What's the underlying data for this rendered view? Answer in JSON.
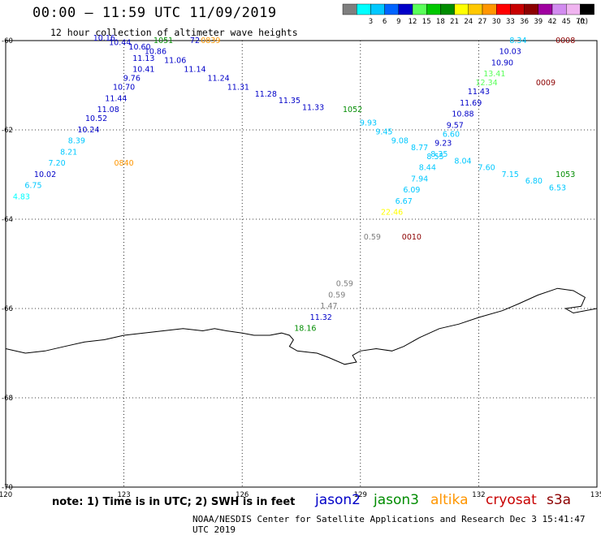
{
  "header": {
    "title": "00:00 – 11:59 UTC 11/09/2019",
    "subtitle": "12 hour collection of altimeter wave heights"
  },
  "colorbar": {
    "unit_label": "(ft)",
    "bins": [
      {
        "label": "",
        "color": "#7f7f7f"
      },
      {
        "label": "3",
        "color": "#00ffff"
      },
      {
        "label": "6",
        "color": "#00c8ff"
      },
      {
        "label": "9",
        "color": "#0064ff"
      },
      {
        "label": "12",
        "color": "#0000c8"
      },
      {
        "label": "15",
        "color": "#5aff5a"
      },
      {
        "label": "18",
        "color": "#00c800"
      },
      {
        "label": "21",
        "color": "#008c00"
      },
      {
        "label": "24",
        "color": "#ffff00"
      },
      {
        "label": "27",
        "color": "#ffc800"
      },
      {
        "label": "30",
        "color": "#ff9600"
      },
      {
        "label": "33",
        "color": "#ff0000"
      },
      {
        "label": "36",
        "color": "#c80000"
      },
      {
        "label": "39",
        "color": "#8c0000"
      },
      {
        "label": "42",
        "color": "#a000a0"
      },
      {
        "label": "45",
        "color": "#d28cf0"
      },
      {
        "label": "70",
        "color": "#f0b4f0"
      },
      {
        "label": "",
        "color": "#000000"
      }
    ]
  },
  "footer": {
    "note": "note:  1) Time is in UTC;  2) SWH is in feet",
    "credit": "NOAA/NESDIS Center for Satellite Applications and Research    Dec  3 15:41:47 UTC 2019",
    "satellites": [
      {
        "name": "jason2",
        "color": "#0000c8"
      },
      {
        "name": "jason3",
        "color": "#008c00"
      },
      {
        "name": "altika",
        "color": "#ff9600"
      },
      {
        "name": "cryosat",
        "color": "#c80000"
      },
      {
        "name": "s3a",
        "color": "#8c0000"
      }
    ]
  },
  "chart_data": {
    "type": "scatter",
    "title": "00:00 – 11:59 UTC 11/09/2019",
    "subtitle": "12 hour collection of altimeter wave heights",
    "xlim": [
      120,
      135
    ],
    "ylim": [
      -70,
      -60
    ],
    "x_ticks": [
      "120",
      "123",
      "126",
      "129",
      "132",
      "135"
    ],
    "y_ticks": [
      "-60",
      "-62",
      "-64",
      "-66",
      "-68",
      "-70"
    ],
    "grid": true,
    "annotations": [
      {
        "text": "10.16",
        "x": 122.5,
        "y": -60.0,
        "color": "#0000c8"
      },
      {
        "text": "10.44",
        "x": 122.9,
        "y": -60.1,
        "color": "#0000c8"
      },
      {
        "text": "10.60",
        "x": 123.4,
        "y": -60.2,
        "color": "#0000c8"
      },
      {
        "text": "10.86",
        "x": 123.8,
        "y": -60.3,
        "color": "#0000c8"
      },
      {
        "text": "11.13",
        "x": 123.5,
        "y": -60.45,
        "color": "#0000c8"
      },
      {
        "text": "11.06",
        "x": 124.3,
        "y": -60.5,
        "color": "#0000c8"
      },
      {
        "text": "11.14",
        "x": 124.8,
        "y": -60.7,
        "color": "#0000c8"
      },
      {
        "text": "11.24",
        "x": 125.4,
        "y": -60.9,
        "color": "#0000c8"
      },
      {
        "text": "11.31",
        "x": 125.9,
        "y": -61.1,
        "color": "#0000c8"
      },
      {
        "text": "11.28",
        "x": 126.6,
        "y": -61.25,
        "color": "#0000c8"
      },
      {
        "text": "11.35",
        "x": 127.2,
        "y": -61.4,
        "color": "#0000c8"
      },
      {
        "text": "11.33",
        "x": 127.8,
        "y": -61.55,
        "color": "#0000c8"
      },
      {
        "text": "1051",
        "x": 124.0,
        "y": -60.05,
        "color": "#008c00"
      },
      {
        "text": "72",
        "x": 124.8,
        "y": -60.05,
        "color": "#0000c8"
      },
      {
        "text": "0839",
        "x": 125.2,
        "y": -60.05,
        "color": "#ff9600"
      },
      {
        "text": "10.41",
        "x": 123.5,
        "y": -60.7,
        "color": "#0000c8"
      },
      {
        "text": "9.76",
        "x": 123.2,
        "y": -60.9,
        "color": "#0000c8"
      },
      {
        "text": "10.70",
        "x": 123.0,
        "y": -61.1,
        "color": "#0000c8"
      },
      {
        "text": "11.44",
        "x": 122.8,
        "y": -61.35,
        "color": "#0000c8"
      },
      {
        "text": "11.08",
        "x": 122.6,
        "y": -61.6,
        "color": "#0000c8"
      },
      {
        "text": "10.52",
        "x": 122.3,
        "y": -61.8,
        "color": "#0000c8"
      },
      {
        "text": "10.24",
        "x": 122.1,
        "y": -62.05,
        "color": "#0000c8"
      },
      {
        "text": "8.39",
        "x": 121.8,
        "y": -62.3,
        "color": "#00c8ff"
      },
      {
        "text": "8.21",
        "x": 121.6,
        "y": -62.55,
        "color": "#00c8ff"
      },
      {
        "text": "7.20",
        "x": 121.3,
        "y": -62.8,
        "color": "#00c8ff"
      },
      {
        "text": "0840",
        "x": 123.0,
        "y": -62.8,
        "color": "#ff9600"
      },
      {
        "text": "10.02",
        "x": 121.0,
        "y": -63.05,
        "color": "#0000c8"
      },
      {
        "text": "6.75",
        "x": 120.7,
        "y": -63.3,
        "color": "#00c8ff"
      },
      {
        "text": "4.83",
        "x": 120.4,
        "y": -63.55,
        "color": "#00ffff"
      },
      {
        "text": "1052",
        "x": 128.8,
        "y": -61.6,
        "color": "#008c00"
      },
      {
        "text": "9.93",
        "x": 129.2,
        "y": -61.9,
        "color": "#00c8ff"
      },
      {
        "text": "9.45",
        "x": 129.6,
        "y": -62.1,
        "color": "#00c8ff"
      },
      {
        "text": "9.08",
        "x": 130.0,
        "y": -62.3,
        "color": "#00c8ff"
      },
      {
        "text": "8.77",
        "x": 130.5,
        "y": -62.45,
        "color": "#00c8ff"
      },
      {
        "text": "8.35",
        "x": 131.0,
        "y": -62.6,
        "color": "#00c8ff"
      },
      {
        "text": "8.04",
        "x": 131.6,
        "y": -62.75,
        "color": "#00c8ff"
      },
      {
        "text": "7.60",
        "x": 132.2,
        "y": -62.9,
        "color": "#00c8ff"
      },
      {
        "text": "7.15",
        "x": 132.8,
        "y": -63.05,
        "color": "#00c8ff"
      },
      {
        "text": "6.80",
        "x": 133.4,
        "y": -63.2,
        "color": "#00c8ff"
      },
      {
        "text": "6.53",
        "x": 134.0,
        "y": -63.35,
        "color": "#00c8ff"
      },
      {
        "text": "1053",
        "x": 134.2,
        "y": -63.05,
        "color": "#008c00"
      },
      {
        "text": "8.34",
        "x": 133.0,
        "y": -60.05,
        "color": "#00c8ff"
      },
      {
        "text": "0008",
        "x": 134.2,
        "y": -60.05,
        "color": "#8c0000"
      },
      {
        "text": "10.03",
        "x": 132.8,
        "y": -60.3,
        "color": "#0000c8"
      },
      {
        "text": "10.90",
        "x": 132.6,
        "y": -60.55,
        "color": "#0000c8"
      },
      {
        "text": "13.41",
        "x": 132.4,
        "y": -60.8,
        "color": "#5aff5a"
      },
      {
        "text": "12.34",
        "x": 132.2,
        "y": -61.0,
        "color": "#5aff5a"
      },
      {
        "text": "0009",
        "x": 133.7,
        "y": -61.0,
        "color": "#8c0000"
      },
      {
        "text": "11.43",
        "x": 132.0,
        "y": -61.2,
        "color": "#0000c8"
      },
      {
        "text": "11.69",
        "x": 131.8,
        "y": -61.45,
        "color": "#0000c8"
      },
      {
        "text": "10.88",
        "x": 131.6,
        "y": -61.7,
        "color": "#0000c8"
      },
      {
        "text": "9.57",
        "x": 131.4,
        "y": -61.95,
        "color": "#0000c8"
      },
      {
        "text": "6.60",
        "x": 131.3,
        "y": -62.15,
        "color": "#00c8ff"
      },
      {
        "text": "9.23",
        "x": 131.1,
        "y": -62.35,
        "color": "#0000c8"
      },
      {
        "text": "8.55",
        "x": 130.9,
        "y": -62.65,
        "color": "#00c8ff"
      },
      {
        "text": "8.44",
        "x": 130.7,
        "y": -62.9,
        "color": "#00c8ff"
      },
      {
        "text": "7.94",
        "x": 130.5,
        "y": -63.15,
        "color": "#00c8ff"
      },
      {
        "text": "6.09",
        "x": 130.3,
        "y": -63.4,
        "color": "#00c8ff"
      },
      {
        "text": "6.67",
        "x": 130.1,
        "y": -63.65,
        "color": "#00c8ff"
      },
      {
        "text": "22.46",
        "x": 129.8,
        "y": -63.9,
        "color": "#ffff00"
      },
      {
        "text": "0.59",
        "x": 129.3,
        "y": -64.45,
        "color": "#7f7f7f"
      },
      {
        "text": "0010",
        "x": 130.3,
        "y": -64.45,
        "color": "#8c0000"
      },
      {
        "text": "0.59",
        "x": 128.6,
        "y": -65.5,
        "color": "#7f7f7f"
      },
      {
        "text": "0.59",
        "x": 128.4,
        "y": -65.75,
        "color": "#7f7f7f"
      },
      {
        "text": "1.47",
        "x": 128.2,
        "y": -66.0,
        "color": "#7f7f7f"
      },
      {
        "text": "11.32",
        "x": 128.0,
        "y": -66.25,
        "color": "#0000c8"
      },
      {
        "text": "18.16",
        "x": 127.6,
        "y": -66.5,
        "color": "#008c00"
      }
    ]
  }
}
